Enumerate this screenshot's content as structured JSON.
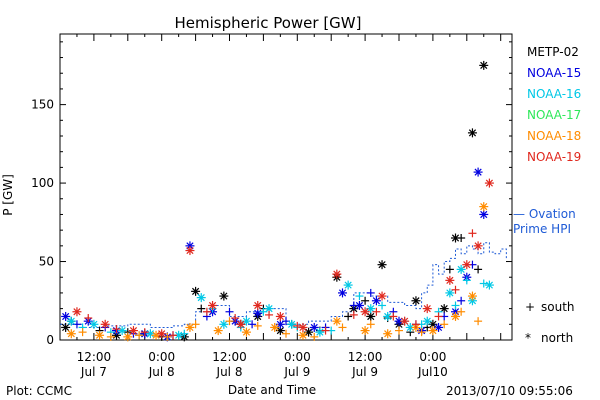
{
  "chart_data": {
    "type": "scatter",
    "title": "Hemispheric Power [GW]",
    "xlabel": "Date and Time",
    "ylabel": "P [GW]",
    "ylim": [
      0,
      195
    ],
    "yticks": [
      0,
      50,
      100,
      150
    ],
    "x_unit": "hours since 2013-07-07 06:00 UT",
    "xlim": [
      0,
      80
    ],
    "xticks": [
      {
        "x": 6,
        "line1": "12:00",
        "line2": "Jul 7"
      },
      {
        "x": 18,
        "line1": "0:00",
        "line2": "Jul 8"
      },
      {
        "x": 30,
        "line1": "12:00",
        "line2": "Jul 8"
      },
      {
        "x": 42,
        "line1": "0:00",
        "line2": "Jul 9"
      },
      {
        "x": 54,
        "line1": "12:00",
        "line2": "Jul 9"
      },
      {
        "x": 66,
        "line1": "0:00",
        "line2": "Jul10"
      }
    ],
    "grid": false,
    "legend_position": "right",
    "series": [
      {
        "name": "METP-02",
        "color": "#000000",
        "north": [
          [
            1,
            8
          ],
          [
            10,
            3
          ],
          [
            15,
            4
          ],
          [
            22,
            2
          ],
          [
            24,
            31
          ],
          [
            29,
            28
          ],
          [
            32,
            10
          ],
          [
            35,
            15
          ],
          [
            39,
            6
          ],
          [
            44,
            5
          ],
          [
            49,
            40
          ],
          [
            52,
            20
          ],
          [
            55,
            15
          ],
          [
            57,
            48
          ],
          [
            60,
            10
          ],
          [
            63,
            25
          ],
          [
            66,
            10
          ],
          [
            68,
            20
          ],
          [
            70,
            65
          ],
          [
            73,
            132
          ],
          [
            75,
            175
          ]
        ],
        "south": [
          [
            2,
            12
          ],
          [
            7,
            6
          ],
          [
            12,
            5
          ],
          [
            18,
            2
          ],
          [
            25,
            20
          ],
          [
            31,
            12
          ],
          [
            36,
            20
          ],
          [
            41,
            10
          ],
          [
            46,
            6
          ],
          [
            51,
            15
          ],
          [
            54,
            25
          ],
          [
            58,
            14
          ],
          [
            62,
            5
          ],
          [
            65,
            8
          ],
          [
            69,
            45
          ],
          [
            71,
            65
          ],
          [
            74,
            45
          ]
        ]
      },
      {
        "name": "NOAA-15",
        "color": "#0000e0",
        "north": [
          [
            1,
            15
          ],
          [
            5,
            12
          ],
          [
            10,
            6
          ],
          [
            15,
            4
          ],
          [
            19,
            2
          ],
          [
            23,
            60
          ],
          [
            27,
            18
          ],
          [
            31,
            12
          ],
          [
            35,
            17
          ],
          [
            39,
            10
          ],
          [
            45,
            8
          ],
          [
            50,
            30
          ],
          [
            53,
            22
          ],
          [
            56,
            25
          ],
          [
            60,
            12
          ],
          [
            64,
            6
          ],
          [
            67,
            8
          ],
          [
            70,
            18
          ],
          [
            72,
            40
          ],
          [
            74,
            107
          ],
          [
            75,
            80
          ]
        ],
        "south": [
          [
            3,
            10
          ],
          [
            8,
            8
          ],
          [
            13,
            4
          ],
          [
            20,
            3
          ],
          [
            26,
            15
          ],
          [
            30,
            18
          ],
          [
            34,
            10
          ],
          [
            40,
            12
          ],
          [
            47,
            8
          ],
          [
            52,
            22
          ],
          [
            55,
            30
          ],
          [
            59,
            18
          ],
          [
            63,
            10
          ],
          [
            68,
            15
          ],
          [
            71,
            25
          ],
          [
            73,
            48
          ]
        ]
      },
      {
        "name": "NOAA-16",
        "color": "#00c8e6",
        "north": [
          [
            2,
            12
          ],
          [
            6,
            10
          ],
          [
            11,
            6
          ],
          [
            16,
            4
          ],
          [
            21,
            3
          ],
          [
            25,
            27
          ],
          [
            29,
            10
          ],
          [
            33,
            12
          ],
          [
            37,
            20
          ],
          [
            41,
            10
          ],
          [
            46,
            5
          ],
          [
            51,
            35
          ],
          [
            55,
            20
          ],
          [
            58,
            15
          ],
          [
            62,
            8
          ],
          [
            65,
            12
          ],
          [
            69,
            30
          ],
          [
            71,
            45
          ],
          [
            73,
            25
          ],
          [
            76,
            35
          ]
        ],
        "south": [
          [
            4,
            8
          ],
          [
            9,
            5
          ],
          [
            14,
            3
          ],
          [
            22,
            4
          ],
          [
            27,
            20
          ],
          [
            32,
            8
          ],
          [
            36,
            18
          ],
          [
            42,
            8
          ],
          [
            48,
            6
          ],
          [
            53,
            28
          ],
          [
            57,
            22
          ],
          [
            61,
            12
          ],
          [
            64,
            10
          ],
          [
            67,
            18
          ],
          [
            70,
            22
          ],
          [
            72,
            38
          ],
          [
            75,
            36
          ]
        ]
      },
      {
        "name": "NOAA-17",
        "color": "#2ee85a",
        "north": [],
        "south": []
      },
      {
        "name": "NOAA-18",
        "color": "#ff8c00",
        "north": [
          [
            2,
            4
          ],
          [
            7,
            3
          ],
          [
            12,
            2
          ],
          [
            17,
            3
          ],
          [
            23,
            8
          ],
          [
            28,
            6
          ],
          [
            33,
            5
          ],
          [
            38,
            8
          ],
          [
            43,
            3
          ],
          [
            49,
            12
          ],
          [
            54,
            6
          ],
          [
            58,
            4
          ],
          [
            63,
            8
          ],
          [
            66,
            6
          ],
          [
            70,
            15
          ],
          [
            73,
            28
          ],
          [
            75,
            85
          ]
        ],
        "south": [
          [
            4,
            5
          ],
          [
            9,
            2
          ],
          [
            14,
            3
          ],
          [
            19,
            2
          ],
          [
            24,
            10
          ],
          [
            30,
            12
          ],
          [
            35,
            9
          ],
          [
            40,
            4
          ],
          [
            45,
            2
          ],
          [
            50,
            8
          ],
          [
            55,
            10
          ],
          [
            60,
            6
          ],
          [
            64,
            5
          ],
          [
            68,
            10
          ],
          [
            71,
            18
          ],
          [
            74,
            12
          ]
        ]
      },
      {
        "name": "NOAA-19",
        "color": "#e0281e",
        "north": [
          [
            3,
            18
          ],
          [
            8,
            10
          ],
          [
            13,
            6
          ],
          [
            18,
            4
          ],
          [
            23,
            57
          ],
          [
            27,
            22
          ],
          [
            32,
            10
          ],
          [
            35,
            22
          ],
          [
            39,
            15
          ],
          [
            43,
            8
          ],
          [
            49,
            42
          ],
          [
            54,
            18
          ],
          [
            57,
            28
          ],
          [
            61,
            12
          ],
          [
            65,
            20
          ],
          [
            69,
            38
          ],
          [
            72,
            48
          ],
          [
            74,
            60
          ],
          [
            76,
            100
          ]
        ],
        "south": [
          [
            5,
            14
          ],
          [
            10,
            7
          ],
          [
            15,
            5
          ],
          [
            20,
            3
          ],
          [
            26,
            18
          ],
          [
            31,
            14
          ],
          [
            37,
            16
          ],
          [
            42,
            9
          ],
          [
            47,
            6
          ],
          [
            52,
            16
          ],
          [
            56,
            18
          ],
          [
            59,
            15
          ],
          [
            63,
            10
          ],
          [
            67,
            15
          ],
          [
            70,
            32
          ],
          [
            73,
            68
          ]
        ]
      }
    ],
    "ovation_prime_hpi": {
      "name": "— Ovation Prime HPI",
      "label_line1": "— Ovation",
      "label_line2": "Prime HPI",
      "color": "#1f5bd6",
      "x": [
        0,
        4,
        8,
        12,
        16,
        20,
        22,
        24,
        27,
        30,
        33,
        36,
        40,
        44,
        48,
        50,
        52,
        55,
        58,
        61,
        63,
        64,
        65,
        66,
        67,
        68,
        69,
        70,
        71,
        72,
        73,
        74,
        75,
        76,
        77,
        78,
        79
      ],
      "y": [
        10,
        8,
        9,
        10,
        8,
        9,
        10,
        18,
        22,
        15,
        18,
        20,
        10,
        12,
        15,
        18,
        30,
        28,
        24,
        22,
        20,
        30,
        35,
        48,
        42,
        50,
        52,
        58,
        55,
        60,
        58,
        55,
        62,
        56,
        55,
        58,
        52
      ]
    },
    "marker_legend": [
      {
        "symbol": "+",
        "label": "south"
      },
      {
        "symbol": "*",
        "label": "north"
      }
    ]
  },
  "footer": {
    "plot_source": "Plot: CCMC",
    "timestamp": "2013/07/10 09:55:06"
  }
}
